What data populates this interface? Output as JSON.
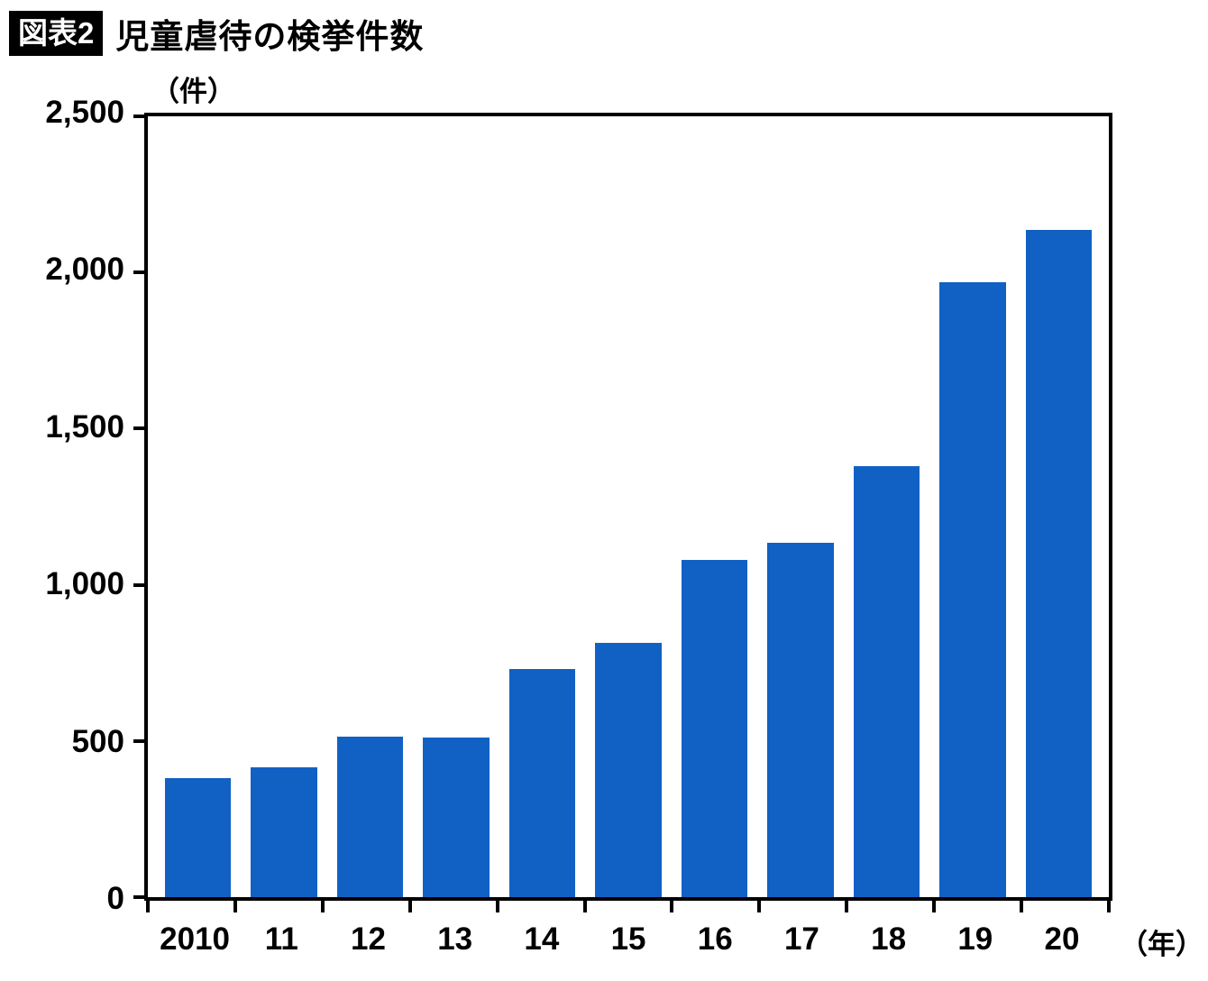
{
  "header": {
    "badge": "図表2",
    "title": "児童虐待の検挙件数"
  },
  "chart_data": {
    "type": "bar",
    "title": "児童虐待の検挙件数",
    "unit_label": "（件）",
    "x_axis_suffix": "（年）",
    "categories": [
      "2010",
      "11",
      "12",
      "13",
      "14",
      "15",
      "16",
      "17",
      "18",
      "19",
      "20"
    ],
    "values": [
      380,
      415,
      515,
      510,
      730,
      815,
      1080,
      1135,
      1380,
      1970,
      2135
    ],
    "ylim": [
      0,
      2500
    ],
    "y_ticks": [
      0,
      500,
      1000,
      1500,
      2000,
      2500
    ],
    "y_tick_labels": [
      "0",
      "500",
      "1,000",
      "1,500",
      "2,000",
      "2,500"
    ],
    "bar_color": "#1161c4",
    "grid": false,
    "legend": false
  }
}
